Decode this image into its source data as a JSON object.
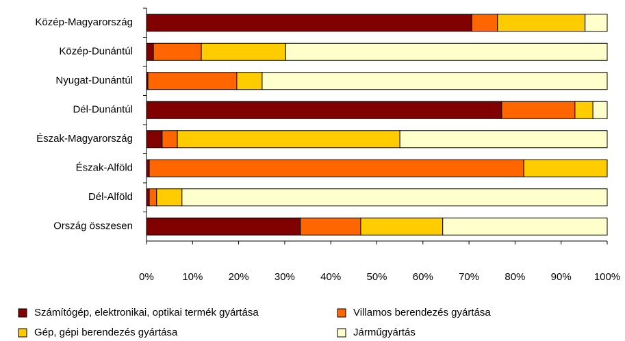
{
  "chart_data": {
    "type": "bar",
    "orientation": "horizontal",
    "stacked": true,
    "categories": [
      "Közép-Magyarország",
      "Közép-Dunántúl",
      "Nyugat-Dunántúl",
      "Dél-Dunántúl",
      "Észak-Magyarország",
      "Észak-Alföld",
      "Dél-Alföld",
      "Ország összesen"
    ],
    "series": [
      {
        "name": "Számítógép, elektronikai, optikai termék gyártása",
        "color": "#800000",
        "values": [
          70.6,
          1.5,
          0.3,
          77.1,
          3.4,
          0.6,
          0.6,
          33.4
        ]
      },
      {
        "name": "Villamos berendezés gyártása",
        "color": "#ff6600",
        "values": [
          5.6,
          10.4,
          19.3,
          15.9,
          3.3,
          81.3,
          1.6,
          13.1
        ]
      },
      {
        "name": "Gép, gépi berendezés gyártása",
        "color": "#ffcc00",
        "values": [
          19.0,
          18.3,
          5.5,
          3.9,
          48.3,
          18.1,
          5.5,
          17.8
        ]
      },
      {
        "name": "Járműgyártás",
        "color": "#ffffcc",
        "values": [
          4.8,
          69.8,
          74.9,
          3.1,
          45.0,
          0,
          92.3,
          35.7
        ]
      }
    ],
    "xlim": [
      0,
      100
    ],
    "xticks": [
      {
        "value": 0,
        "label": "0%"
      },
      {
        "value": 10,
        "label": "10%"
      },
      {
        "value": 20,
        "label": "20%"
      },
      {
        "value": 30,
        "label": "30%"
      },
      {
        "value": 40,
        "label": "40%"
      },
      {
        "value": 50,
        "label": "50%"
      },
      {
        "value": 60,
        "label": "60%"
      },
      {
        "value": 70,
        "label": "70%"
      },
      {
        "value": 80,
        "label": "80%"
      },
      {
        "value": 90,
        "label": "90%"
      },
      {
        "value": 100,
        "label": "100%"
      }
    ],
    "legend": "bottom"
  }
}
